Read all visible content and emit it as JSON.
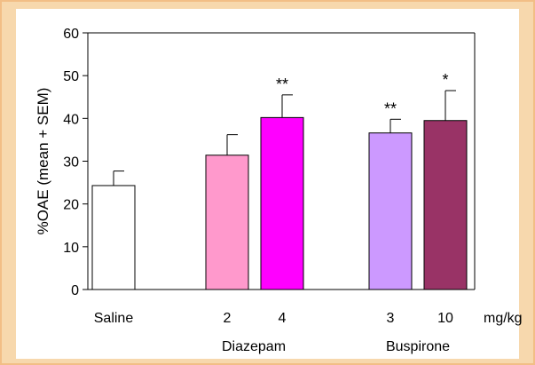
{
  "colors": {
    "frame": "#f7d8ad",
    "frame_border": "#f2be86",
    "background": "#ffffff"
  },
  "chart_data": {
    "type": "bar",
    "title": "",
    "ylabel": "%OAE (mean + SEM)",
    "xlabel": "",
    "unit_label": "mg/kg",
    "ylim": [
      0,
      60
    ],
    "yticks": [
      0,
      10,
      20,
      30,
      40,
      50,
      60
    ],
    "grid": false,
    "legend": "none",
    "groups": [
      {
        "label": "",
        "categories": [
          "Saline"
        ]
      },
      {
        "label": "Diazepam",
        "categories": [
          "2",
          "4"
        ]
      },
      {
        "label": "Buspirone",
        "categories": [
          "3",
          "10"
        ]
      }
    ],
    "bars": [
      {
        "category": "Saline",
        "group": "",
        "value": 24.3,
        "sem": 3.4,
        "significance": "",
        "color": "#ffffff"
      },
      {
        "category": "2",
        "group": "Diazepam",
        "value": 31.4,
        "sem": 4.8,
        "significance": "",
        "color": "#ff99cc"
      },
      {
        "category": "4",
        "group": "Diazepam",
        "value": 40.2,
        "sem": 5.3,
        "significance": "**",
        "color": "#ff00ff"
      },
      {
        "category": "3",
        "group": "Buspirone",
        "value": 36.6,
        "sem": 3.2,
        "significance": "**",
        "color": "#cc99ff"
      },
      {
        "category": "10",
        "group": "Buspirone",
        "value": 39.5,
        "sem": 7.0,
        "significance": "*",
        "color": "#993366"
      }
    ]
  }
}
